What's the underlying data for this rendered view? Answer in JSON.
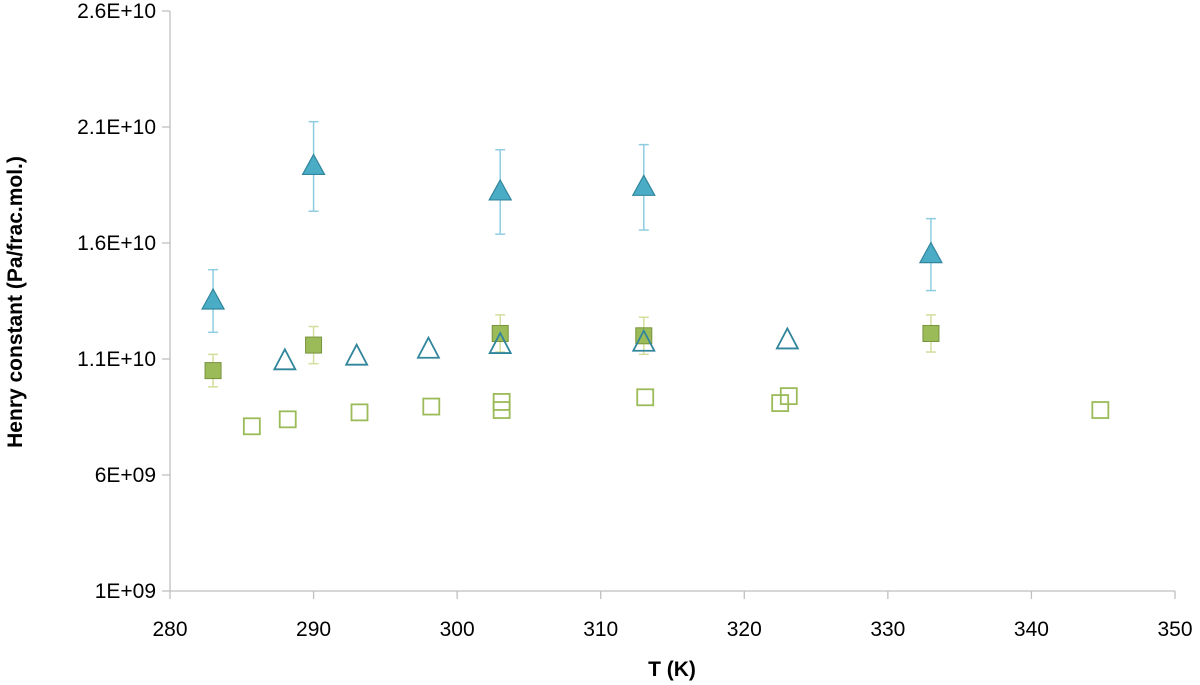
{
  "chart_data": {
    "type": "scatter",
    "title": "",
    "xlabel": "T (K)",
    "ylabel": "Henry constant (Pa/frac.mol.)",
    "xlim": [
      280,
      350
    ],
    "ylim": [
      1000000000,
      26000000000
    ],
    "xticks": [
      280,
      290,
      300,
      310,
      320,
      330,
      340,
      350
    ],
    "xtick_labels": [
      "280",
      "290",
      "300",
      "310",
      "320",
      "330",
      "340",
      "350"
    ],
    "yticks": [
      1000000000,
      6000000000,
      11000000000,
      16000000000,
      21000000000,
      26000000000
    ],
    "ytick_labels": [
      "1E+09",
      "6E+09",
      "1.1E+10",
      "1.6E+10",
      "2.1E+10",
      "2.6E+10"
    ],
    "grid": false,
    "legend": "none",
    "colors": {
      "triangle_fill": "#4bacc6",
      "triangle_stroke": "#31859c",
      "triangle_error": "#8ecde0",
      "square_fill": "#9bbb59",
      "square_stroke": "#77933c",
      "square_error": "#d4dd9c",
      "axis": "#bfbfbf"
    },
    "series": [
      {
        "marker": "triangle-filled",
        "points": [
          {
            "x": 283,
            "y": 13500000000,
            "err": 1350000000
          },
          {
            "x": 290,
            "y": 19300000000,
            "err": 1930000000
          },
          {
            "x": 303,
            "y": 18200000000,
            "err": 1820000000
          },
          {
            "x": 313,
            "y": 18400000000,
            "err": 1840000000
          },
          {
            "x": 333,
            "y": 15500000000,
            "err": 1550000000
          }
        ]
      },
      {
        "marker": "square-filled",
        "points": [
          {
            "x": 283,
            "y": 10500000000,
            "err": 700000000
          },
          {
            "x": 290,
            "y": 11600000000,
            "err": 800000000
          },
          {
            "x": 303,
            "y": 12100000000,
            "err": 800000000
          },
          {
            "x": 313,
            "y": 12000000000,
            "err": 800000000
          },
          {
            "x": 333,
            "y": 12100000000,
            "err": 800000000
          }
        ]
      },
      {
        "marker": "triangle-open",
        "points": [
          {
            "x": 288,
            "y": 10900000000
          },
          {
            "x": 293,
            "y": 11100000000
          },
          {
            "x": 298,
            "y": 11400000000
          },
          {
            "x": 303,
            "y": 11600000000
          },
          {
            "x": 313,
            "y": 11700000000
          },
          {
            "x": 323,
            "y": 11800000000
          }
        ]
      },
      {
        "marker": "square-open",
        "points": [
          {
            "x": 285.7,
            "y": 8100000000
          },
          {
            "x": 288.2,
            "y": 8400000000
          },
          {
            "x": 293.2,
            "y": 8700000000
          },
          {
            "x": 298.2,
            "y": 8950000000
          },
          {
            "x": 303.1,
            "y": 8800000000
          },
          {
            "x": 303.1,
            "y": 9150000000
          },
          {
            "x": 313.1,
            "y": 9350000000
          },
          {
            "x": 322.5,
            "y": 9100000000
          },
          {
            "x": 323.1,
            "y": 9400000000
          },
          {
            "x": 344.8,
            "y": 8800000000
          }
        ]
      }
    ]
  }
}
